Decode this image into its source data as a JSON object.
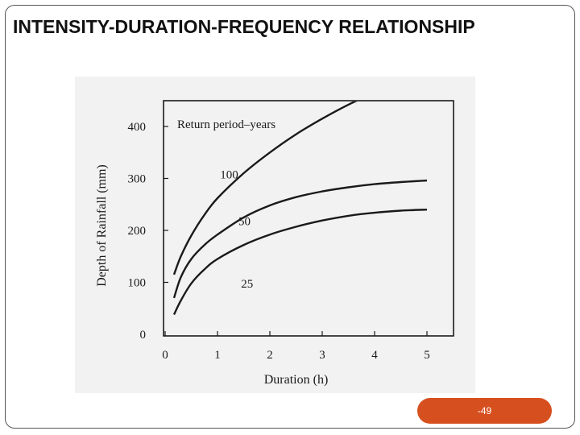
{
  "slide": {
    "title": "INTENSITY-DURATION-FREQUENCY RELATIONSHIP",
    "page_number": "-49"
  },
  "colors": {
    "accent": "#d6501f",
    "scan_background": "#f1f2f1",
    "ink": "#1a1a1a"
  },
  "chart_data": {
    "type": "line",
    "title": "",
    "legend_title": "Return period–years",
    "xlabel": "Duration (h)",
    "ylabel": "Depth of Rainfall (mm)",
    "xlim": [
      0,
      5
    ],
    "ylim": [
      0,
      450
    ],
    "xticks": [
      "0",
      "1",
      "2",
      "3",
      "4",
      "5"
    ],
    "yticks": [
      "0",
      "100",
      "200",
      "300",
      "400"
    ],
    "grid": false,
    "series": [
      {
        "name": "100",
        "x": [
          0.17,
          0.3,
          0.5,
          0.75,
          1.0,
          1.5,
          2.0,
          2.5,
          3.0,
          3.5,
          3.85
        ],
        "y": [
          115,
          150,
          190,
          230,
          262,
          310,
          350,
          385,
          415,
          442,
          458
        ]
      },
      {
        "name": "50",
        "x": [
          0.17,
          0.3,
          0.5,
          0.75,
          1.0,
          1.5,
          2.0,
          2.5,
          3.0,
          3.5,
          4.0,
          4.5,
          5.0
        ],
        "y": [
          70,
          110,
          145,
          172,
          192,
          225,
          248,
          264,
          275,
          283,
          289,
          293,
          296
        ]
      },
      {
        "name": "25",
        "x": [
          0.17,
          0.3,
          0.5,
          0.75,
          1.0,
          1.5,
          2.0,
          2.5,
          3.0,
          3.5,
          4.0,
          4.5,
          5.0
        ],
        "y": [
          38,
          65,
          98,
          125,
          145,
          172,
          192,
          207,
          219,
          228,
          234,
          238,
          240
        ]
      }
    ]
  }
}
